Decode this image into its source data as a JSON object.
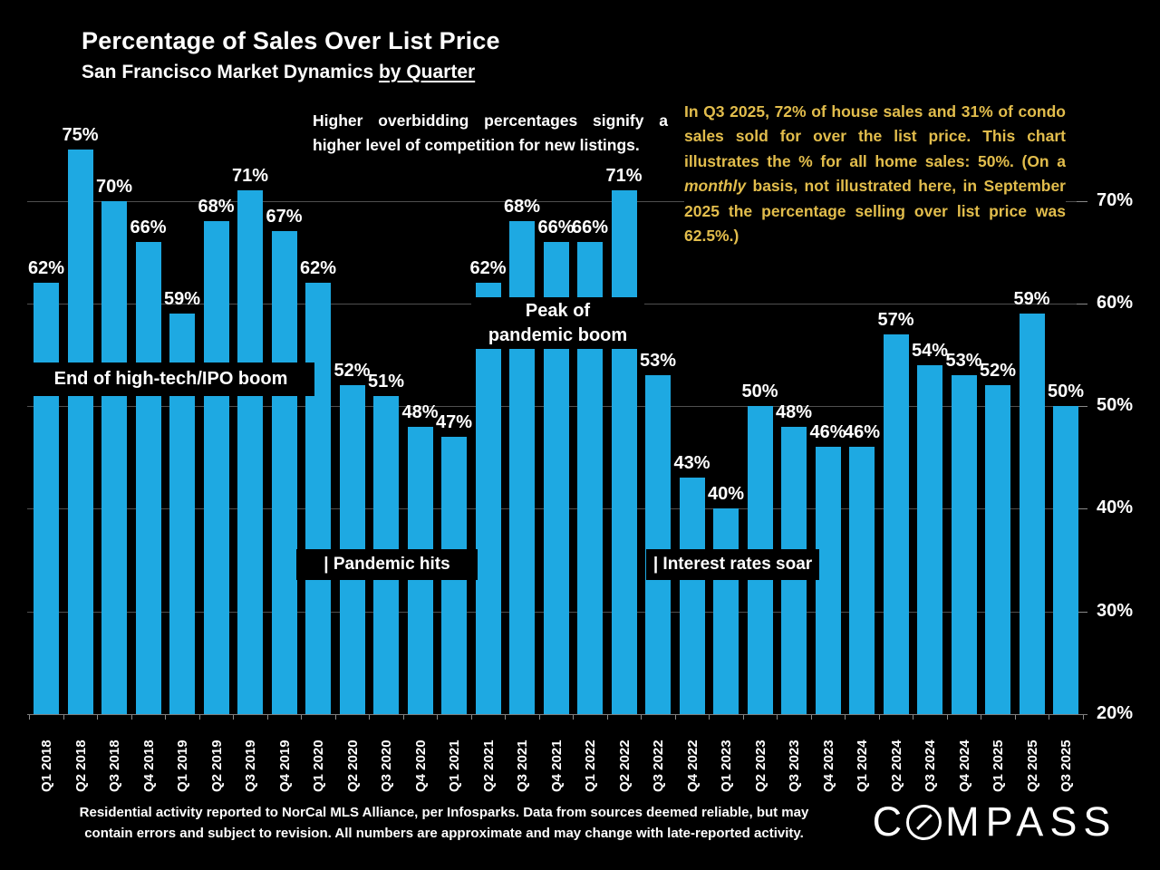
{
  "header": {
    "title": "Percentage of Sales Over List Price",
    "subtitle": "San Francisco Market Dynamics ",
    "subtitle_underlined": "by Quarter"
  },
  "note": {
    "text": "Higher overbidding percentages signify a higher level of competition for new listings."
  },
  "callout": {
    "pre": "In Q3 2025, 72% of house sales and 31% of condo sales sold for over the list price. This chart illustrates the % for all home sales: 50%. (On a ",
    "italic": "monthly",
    "post": " basis, not illustrated here, in September 2025 the percentage selling over list price was 62.5%.)"
  },
  "chart_data": {
    "type": "bar",
    "title": "Percentage of Sales Over List Price",
    "subtitle": "San Francisco Market Dynamics by Quarter",
    "categories": [
      "Q1 2018",
      "Q2 2018",
      "Q3 2018",
      "Q4 2018",
      "Q1 2019",
      "Q2 2019",
      "Q3 2019",
      "Q4 2019",
      "Q1 2020",
      "Q2 2020",
      "Q3 2020",
      "Q4 2020",
      "Q1 2021",
      "Q2 2021",
      "Q3 2021",
      "Q4 2021",
      "Q1 2022",
      "Q2 2022",
      "Q3 2022",
      "Q4 2022",
      "Q1 2023",
      "Q2 2023",
      "Q3 2023",
      "Q4 2023",
      "Q1 2024",
      "Q2 2024",
      "Q3 2024",
      "Q4 2024",
      "Q1 2025",
      "Q2 2025",
      "Q3 2025"
    ],
    "values": [
      62,
      75,
      70,
      66,
      59,
      68,
      71,
      67,
      62,
      52,
      51,
      48,
      47,
      62,
      68,
      66,
      66,
      71,
      53,
      43,
      40,
      50,
      48,
      46,
      46,
      57,
      54,
      53,
      52,
      59,
      50
    ],
    "label_format": "{v}%",
    "xlabel": "",
    "ylabel": "",
    "ylim": [
      20,
      78
    ],
    "yticks": [
      20,
      30,
      40,
      50,
      60,
      70
    ],
    "ytick_suffix": "%",
    "yaxis_side": "right",
    "grid": "horizontal-behind-bars",
    "legend": "none",
    "bar_color": "#1ea9e2",
    "background": "#000000",
    "annotations": [
      {
        "text": "End of high-tech/IPO boom",
        "near": "Q1 2018 - Q4 2019"
      },
      {
        "text": "| Pandemic hits",
        "near": "Q1 2020 - Q1 2021"
      },
      {
        "text": "Peak of pandemic boom",
        "near": "Q2 2021 - Q2 2022"
      },
      {
        "text": "| Interest rates soar",
        "near": "Q3 2022 - Q1 2023"
      }
    ]
  },
  "annotations": {
    "end_boom": "End of high-tech/IPO boom",
    "pandemic_hits": "| Pandemic hits",
    "peak_line1": "Peak of",
    "peak_line2": "pandemic boom",
    "rates_soar": "| Interest rates soar"
  },
  "footer": {
    "line1": "Residential activity reported to NorCal MLS Alliance, per Infosparks. Data from sources deemed reliable, but may",
    "line2": "contain errors and subject to revision. All numbers are approximate and may change with late-reported activity.",
    "logo_c": "C",
    "logo_rest": "MPASS"
  },
  "colors": {
    "bar": "#1ea9e2",
    "callout_text": "#e2bd4c",
    "background": "#000000",
    "gridline": "#4f4f4f"
  }
}
